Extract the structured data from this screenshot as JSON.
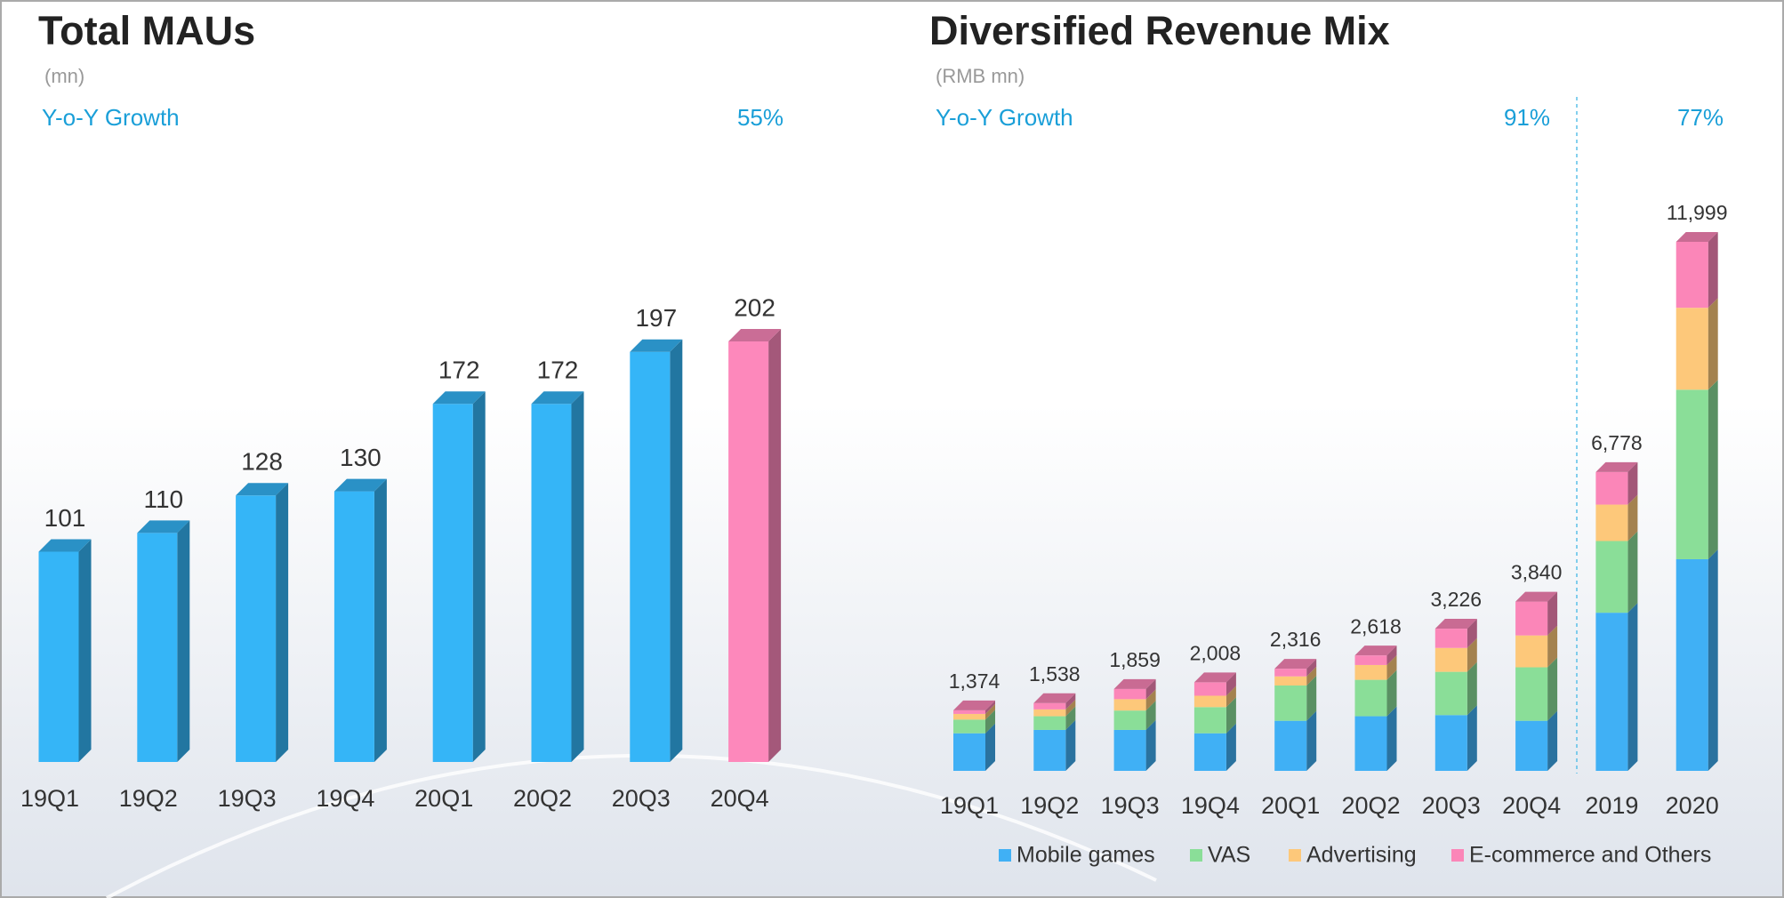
{
  "chart_data": [
    {
      "type": "bar3d",
      "title": "Total MAUs",
      "subtitle": "(mn)",
      "growth_label": "Y-o-Y Growth",
      "growth_values": [
        "55%"
      ],
      "categories": [
        "19Q1",
        "19Q2",
        "19Q3",
        "19Q4",
        "20Q1",
        "20Q2",
        "20Q3",
        "20Q4"
      ],
      "values": [
        101,
        110,
        128,
        130,
        172,
        172,
        197,
        202
      ],
      "colors": [
        "#35b5f7",
        "#35b5f7",
        "#35b5f7",
        "#35b5f7",
        "#35b5f7",
        "#35b5f7",
        "#35b5f7",
        "#fd88bb"
      ]
    },
    {
      "type": "stacked3d",
      "title": "Diversified Revenue Mix",
      "subtitle": "(RMB mn)",
      "growth_label": "Y-o-Y Growth",
      "growth_values": [
        "91%",
        "77%"
      ],
      "categories": [
        "19Q1",
        "19Q2",
        "19Q3",
        "19Q4",
        "20Q1",
        "20Q2",
        "20Q3",
        "20Q4",
        "2019",
        "2020"
      ],
      "series": [
        {
          "name": "Mobile games",
          "color": "#40b0f5",
          "values": [
            852,
            929,
            929,
            852,
            1136,
            1239,
            1265,
            1136,
            3587,
            4800
          ]
        },
        {
          "name": "VAS",
          "color": "#8ade98",
          "values": [
            310,
            310,
            439,
            594,
            800,
            826,
            981,
            1213,
            1626,
            3845
          ]
        },
        {
          "name": "Advertising",
          "color": "#fdc87a",
          "values": [
            130,
            155,
            258,
            258,
            207,
            336,
            542,
            723,
            826,
            1858
          ]
        },
        {
          "name": "E-commerce and Others",
          "color": "#fb86b8",
          "values": [
            82,
            144,
            233,
            304,
            173,
            217,
            438,
            768,
            739,
            1496
          ]
        }
      ],
      "totals": [
        1374,
        1538,
        1859,
        2008,
        2316,
        2618,
        3226,
        3840,
        6778,
        11999
      ],
      "total_labels": [
        "1,374",
        "1,538",
        "1,859",
        "2,008",
        "2,316",
        "2,618",
        "3,226",
        "3,840",
        "6,778",
        "11,999"
      ]
    }
  ]
}
